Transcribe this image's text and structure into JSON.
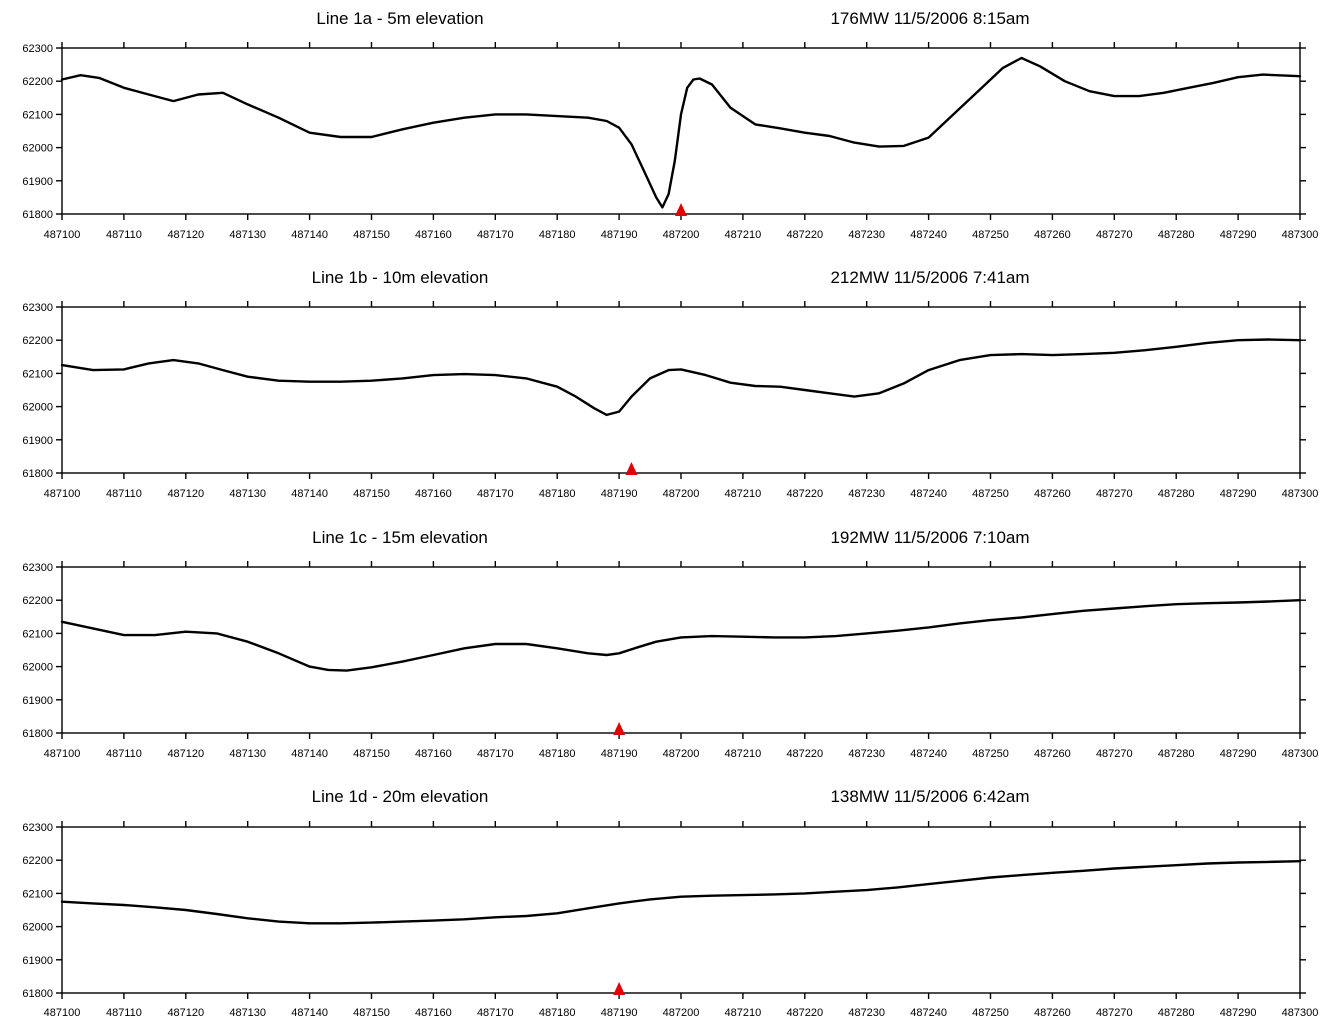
{
  "chart_data": [
    {
      "type": "line",
      "title": "Line 1a - 5m elevation",
      "subtitle": "176MW   11/5/2006   8:15am",
      "xlim": [
        487100,
        487300
      ],
      "ylim": [
        61800,
        62300
      ],
      "x_ticks": [
        "487100",
        "487110",
        "487120",
        "487130",
        "487140",
        "487150",
        "487160",
        "487170",
        "487180",
        "487190",
        "487200",
        "487210",
        "487220",
        "487230",
        "487240",
        "487250",
        "487260",
        "487270",
        "487280",
        "487290",
        "487300"
      ],
      "y_ticks": [
        "62300",
        "62200",
        "62100",
        "62000",
        "61900",
        "61800"
      ],
      "marker_x": 487200,
      "marker_color": "#e00000",
      "line_color": "#000000",
      "x": [
        487100,
        487103,
        487106,
        487110,
        487114,
        487118,
        487122,
        487126,
        487130,
        487135,
        487140,
        487145,
        487150,
        487155,
        487160,
        487165,
        487170,
        487175,
        487180,
        487185,
        487188,
        487190,
        487192,
        487194,
        487196,
        487197,
        487198,
        487199,
        487200,
        487201,
        487202,
        487203,
        487205,
        487208,
        487212,
        487216,
        487220,
        487224,
        487228,
        487232,
        487236,
        487240,
        487244,
        487248,
        487252,
        487255,
        487258,
        487262,
        487266,
        487270,
        487274,
        487278,
        487282,
        487286,
        487290,
        487294,
        487300
      ],
      "y": [
        62205,
        62218,
        62210,
        62180,
        62160,
        62140,
        62160,
        62165,
        62130,
        62090,
        62045,
        62032,
        62032,
        62055,
        62075,
        62090,
        62100,
        62100,
        62095,
        62090,
        62080,
        62060,
        62010,
        61930,
        61850,
        61820,
        61860,
        61960,
        62100,
        62180,
        62205,
        62208,
        62190,
        62120,
        62070,
        62058,
        62045,
        62035,
        62015,
        62003,
        62005,
        62030,
        62100,
        62170,
        62240,
        62270,
        62245,
        62200,
        62170,
        62155,
        62155,
        62165,
        62180,
        62195,
        62212,
        62220,
        62215
      ]
    },
    {
      "type": "line",
      "title": "Line 1b - 10m elevation",
      "subtitle": "212MW   11/5/2006   7:41am",
      "xlim": [
        487100,
        487300
      ],
      "ylim": [
        61800,
        62300
      ],
      "x_ticks": [
        "487100",
        "487110",
        "487120",
        "487130",
        "487140",
        "487150",
        "487160",
        "487170",
        "487180",
        "487190",
        "487200",
        "487210",
        "487220",
        "487230",
        "487240",
        "487250",
        "487260",
        "487270",
        "487280",
        "487290",
        "487300"
      ],
      "y_ticks": [
        "62300",
        "62200",
        "62100",
        "62000",
        "61900",
        "61800"
      ],
      "marker_x": 487192,
      "marker_color": "#e00000",
      "line_color": "#000000",
      "x": [
        487100,
        487105,
        487110,
        487114,
        487118,
        487122,
        487126,
        487130,
        487135,
        487140,
        487145,
        487150,
        487155,
        487160,
        487165,
        487170,
        487175,
        487180,
        487183,
        487186,
        487188,
        487190,
        487192,
        487195,
        487198,
        487200,
        487204,
        487208,
        487212,
        487216,
        487220,
        487224,
        487228,
        487232,
        487236,
        487240,
        487245,
        487250,
        487255,
        487260,
        487265,
        487270,
        487275,
        487280,
        487285,
        487290,
        487295,
        487300
      ],
      "y": [
        62125,
        62110,
        62112,
        62130,
        62140,
        62130,
        62110,
        62090,
        62078,
        62075,
        62075,
        62078,
        62085,
        62095,
        62098,
        62095,
        62085,
        62060,
        62030,
        61995,
        61975,
        61985,
        62030,
        62085,
        62110,
        62112,
        62095,
        62072,
        62062,
        62060,
        62050,
        62040,
        62030,
        62040,
        62070,
        62110,
        62140,
        62155,
        62158,
        62155,
        62158,
        62162,
        62170,
        62180,
        62192,
        62200,
        62202,
        62200
      ]
    },
    {
      "type": "line",
      "title": "Line 1c - 15m elevation",
      "subtitle": "192MW   11/5/2006   7:10am",
      "xlim": [
        487100,
        487300
      ],
      "ylim": [
        61800,
        62300
      ],
      "x_ticks": [
        "487100",
        "487110",
        "487120",
        "487130",
        "487140",
        "487150",
        "487160",
        "487170",
        "487180",
        "487190",
        "487200",
        "487210",
        "487220",
        "487230",
        "487240",
        "487250",
        "487260",
        "487270",
        "487280",
        "487290",
        "487300"
      ],
      "y_ticks": [
        "62300",
        "62200",
        "62100",
        "62000",
        "61900",
        "61800"
      ],
      "marker_x": 487190,
      "marker_color": "#e00000",
      "line_color": "#000000",
      "x": [
        487100,
        487105,
        487110,
        487115,
        487120,
        487125,
        487130,
        487135,
        487140,
        487143,
        487146,
        487150,
        487155,
        487160,
        487165,
        487170,
        487175,
        487180,
        487185,
        487188,
        487190,
        487193,
        487196,
        487200,
        487205,
        487210,
        487215,
        487220,
        487225,
        487230,
        487235,
        487240,
        487245,
        487250,
        487255,
        487260,
        487265,
        487270,
        487275,
        487280,
        487285,
        487290,
        487295,
        487300
      ],
      "y": [
        62135,
        62115,
        62095,
        62095,
        62105,
        62100,
        62075,
        62040,
        62000,
        61990,
        61988,
        61998,
        62015,
        62035,
        62055,
        62068,
        62068,
        62055,
        62040,
        62035,
        62040,
        62058,
        62075,
        62088,
        62092,
        62090,
        62088,
        62088,
        62092,
        62100,
        62108,
        62118,
        62130,
        62140,
        62148,
        62158,
        62168,
        62175,
        62182,
        62188,
        62191,
        62193,
        62196,
        62200
      ]
    },
    {
      "type": "line",
      "title": "Line 1d - 20m elevation",
      "subtitle": "138MW   11/5/2006   6:42am",
      "xlim": [
        487100,
        487300
      ],
      "ylim": [
        61800,
        62300
      ],
      "x_ticks": [
        "487100",
        "487110",
        "487120",
        "487130",
        "487140",
        "487150",
        "487160",
        "487170",
        "487180",
        "487190",
        "487200",
        "487210",
        "487220",
        "487230",
        "487240",
        "487250",
        "487260",
        "487270",
        "487280",
        "487290",
        "487300"
      ],
      "y_ticks": [
        "62300",
        "62200",
        "62100",
        "62000",
        "61900",
        "61800"
      ],
      "marker_x": 487190,
      "marker_color": "#e00000",
      "line_color": "#000000",
      "x": [
        487100,
        487105,
        487110,
        487115,
        487120,
        487125,
        487130,
        487135,
        487140,
        487145,
        487150,
        487155,
        487160,
        487165,
        487170,
        487175,
        487180,
        487185,
        487190,
        487195,
        487200,
        487205,
        487210,
        487215,
        487220,
        487225,
        487230,
        487235,
        487240,
        487245,
        487250,
        487255,
        487260,
        487265,
        487270,
        487275,
        487280,
        487285,
        487290,
        487295,
        487300
      ],
      "y": [
        62075,
        62070,
        62065,
        62058,
        62050,
        62038,
        62025,
        62015,
        62010,
        62010,
        62012,
        62015,
        62018,
        62022,
        62028,
        62032,
        62040,
        62055,
        62070,
        62082,
        62090,
        62093,
        62095,
        62097,
        62100,
        62105,
        62110,
        62118,
        62128,
        62138,
        62148,
        62155,
        62162,
        62168,
        62175,
        62180,
        62185,
        62190,
        62193,
        62195,
        62197
      ]
    }
  ]
}
